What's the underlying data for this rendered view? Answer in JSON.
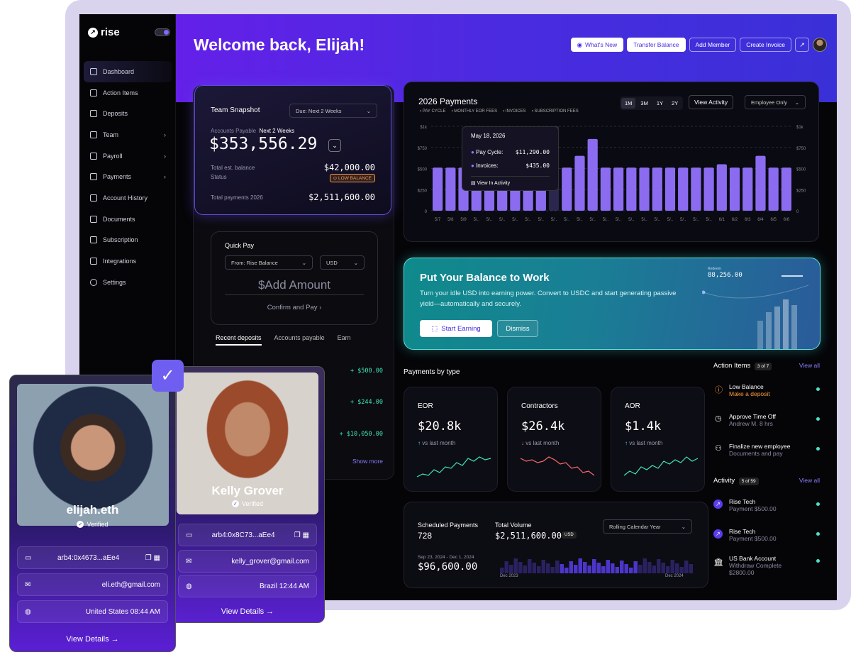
{
  "sidebar": {
    "brand": "rise",
    "items": [
      {
        "label": "Dashboard",
        "chev": ""
      },
      {
        "label": "Action Items",
        "chev": ""
      },
      {
        "label": "Deposits",
        "chev": ""
      },
      {
        "label": "Team",
        "chev": "›"
      },
      {
        "label": "Payroll",
        "chev": "›"
      },
      {
        "label": "Payments",
        "chev": "›"
      },
      {
        "label": "Account History",
        "chev": ""
      },
      {
        "label": "Documents",
        "chev": ""
      },
      {
        "label": "Subscription",
        "chev": ""
      },
      {
        "label": "Integrations",
        "chev": ""
      },
      {
        "label": "Settings",
        "chev": ""
      }
    ]
  },
  "header": {
    "welcome": "Welcome back, Elijah!",
    "whats_new": "What's New",
    "transfer": "Transfer Balance",
    "add_member": "Add Member",
    "create_invoice": "Create Invoice"
  },
  "snapshot": {
    "title": "Team Snapshot",
    "due": "Due:  Next 2 Weeks",
    "ap_label": "Accounts Payable",
    "ap_period": "Next 2 Weeks",
    "ap_value": "$353,556.29",
    "est_label": "Total est. balance",
    "est_value": "$42,000.00",
    "status_label": "Status",
    "status_badge": "LOW BALANCE",
    "total_label": "Total payments 2026",
    "total_value": "$2,511,600.00"
  },
  "quickpay": {
    "title": "Quick Pay",
    "from": "From:  Rise Balance",
    "currency": "USD",
    "amount": "$Add Amount",
    "confirm": "Confirm and Pay  ›"
  },
  "tabs": [
    "Recent deposits",
    "Accounts payable",
    "Earn"
  ],
  "deposits": [
    "+ $500.00",
    "+ $244.00",
    "+ $10,050.00"
  ],
  "show_more": "Show more",
  "payments": {
    "title": "2026 Payments",
    "legend": [
      "PAY CYCLE",
      "MONTHLY EOR FEES",
      "INVOICES",
      "SUBSCRIPTION FEES"
    ],
    "ranges": [
      "1M",
      "3M",
      "1Y",
      "2Y"
    ],
    "view_activity": "View Activity",
    "filter": "Employee Only",
    "tooltip": {
      "date": "May 18, 2026",
      "pay_label": "Pay Cycle:",
      "pay_value": "$11,290.00",
      "inv_label": "Invoices:",
      "inv_value": "$435.00",
      "link": "View In Activity"
    }
  },
  "chart_data": {
    "type": "bar",
    "yticks": [
      "$1k",
      "$750",
      "$500",
      "$250",
      "0"
    ],
    "categories": [
      "5/7",
      "5/8",
      "5/9",
      "5/..",
      "5/..",
      "5/..",
      "5/..",
      "5/..",
      "5/..",
      "5/..",
      "5/..",
      "5/..",
      "5/..",
      "5/..",
      "5/..",
      "5/..",
      "5/..",
      "5/..",
      "5/..",
      "5/..",
      "5/..",
      "5/..",
      "6/1",
      "6/2",
      "6/3",
      "6/4",
      "6/5",
      "6/6"
    ],
    "values": [
      510,
      510,
      510,
      510,
      510,
      510,
      510,
      510,
      510,
      1000,
      510,
      650,
      850,
      510,
      510,
      510,
      510,
      510,
      510,
      510,
      510,
      510,
      550,
      510,
      510,
      650,
      510,
      510
    ],
    "ylim": [
      0,
      1000
    ]
  },
  "balance": {
    "title": "Put Your Balance to Work",
    "desc": "Turn your idle USD into earning power. Convert to USDC and start generating passive yield—automatically and securely.",
    "start": "Start Earning",
    "dismiss": "Dismiss",
    "redeem_label": "Redeem",
    "redeem_value": "88,256.00"
  },
  "ptypes": {
    "title": "Payments by type",
    "cards": [
      {
        "name": "EOR",
        "value": "$20.8k",
        "delta": "↑  vs last month",
        "dcolor": "#3ee6b8"
      },
      {
        "name": "Contractors",
        "value": "$26.4k",
        "delta": "↓  vs last month",
        "dcolor": "#ff6b6b"
      },
      {
        "name": "AOR",
        "value": "$1.4k",
        "delta": "↑  vs last month",
        "dcolor": "#3ee6b8"
      }
    ]
  },
  "sched": {
    "label": "Scheduled Payments",
    "count": "728",
    "vol_label": "Total Volume",
    "vol_value": "$2,511,600.00",
    "cur": "USD",
    "period": "Rolling Calendar Year",
    "range": "Sep 23, 2024 - Dec 1, 2024",
    "range_value": "$96,600.00",
    "dec23": "Dec 2023",
    "dec24": "Dec 2024"
  },
  "actions": {
    "title": "Action Items",
    "count": "3 of 7",
    "view_all": "View all",
    "items": [
      {
        "t": "Low Balance",
        "s": "Make a deposit"
      },
      {
        "t": "Approve Time Off",
        "s": "Andrew M. 8 hrs"
      },
      {
        "t": "Finalize new employee",
        "s": "Documents and pay"
      }
    ]
  },
  "activity": {
    "title": "Activity",
    "count": "5 of 59",
    "view_all": "View all",
    "items": [
      {
        "t": "Rise Tech",
        "s": "Payment $500.00"
      },
      {
        "t": "Rise Tech",
        "s": "Payment $500.00"
      },
      {
        "t": "US Bank Account",
        "s": "Withdraw Complete",
        "a": "$2800.00"
      }
    ]
  },
  "profile1": {
    "name": "elijah.eth",
    "verified": "Verified",
    "addr": "arb4:0x4673...aEe4",
    "email": "eli.eth@gmail.com",
    "loc": "United States 08:44 AM",
    "view": "View Details  →"
  },
  "profile2": {
    "name": "Kelly Grover",
    "verified": "Verified",
    "addr": "arb4:0x8C73...aEe4",
    "email": "kelly_grover@gmail.com",
    "loc": "Brazil 12:44 AM",
    "view": "View Details  →"
  }
}
